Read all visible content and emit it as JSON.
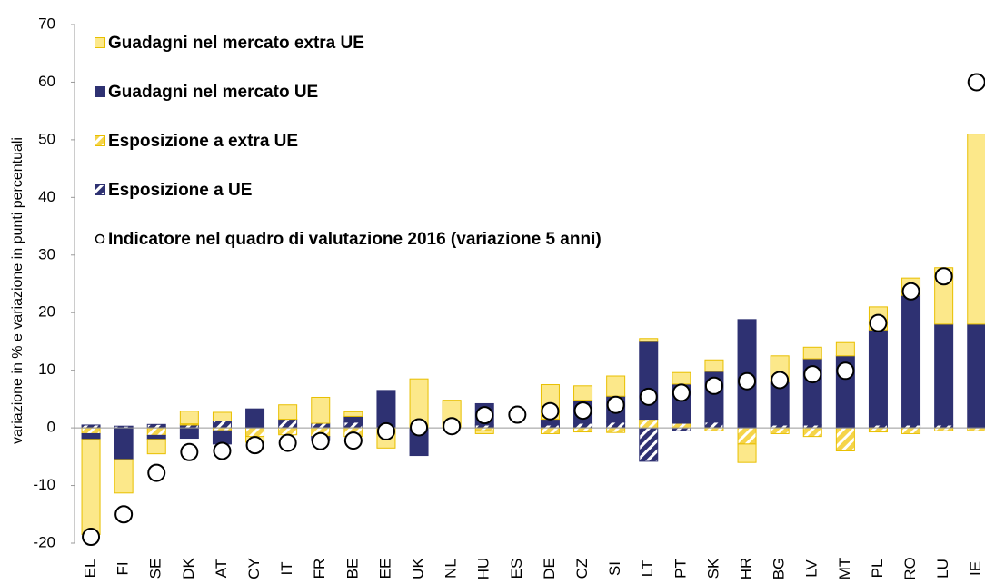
{
  "chart_data": {
    "type": "stacked-bar-scatter",
    "y_label": "variazione in % e variazione in punti percentuali",
    "categories": [
      "EL",
      "FI",
      "SE",
      "DK",
      "AT",
      "CY",
      "IT",
      "FR",
      "BE",
      "EE",
      "UK",
      "NL",
      "HU",
      "ES",
      "DE",
      "CZ",
      "SI",
      "LT",
      "PT",
      "SK",
      "HR",
      "BG",
      "LV",
      "MT",
      "PL",
      "RO",
      "LU",
      "IE"
    ],
    "series": [
      {
        "name": "Esposizione a UE",
        "color": "#2e3172",
        "pattern": "hatch",
        "values": [
          0.5,
          0.3,
          0.6,
          0.5,
          1.2,
          0,
          1.5,
          0.8,
          1,
          0,
          0,
          0,
          0.5,
          0,
          0.5,
          0.8,
          1,
          -5.8,
          -0.5,
          1,
          0,
          0.5,
          0.5,
          0,
          0.5,
          0.5,
          0.5,
          0
        ]
      },
      {
        "name": "Esposizione a extra UE",
        "color": "#f5d44a",
        "pattern": "hatch",
        "values": [
          -1,
          0,
          -1.3,
          0.2,
          -0.5,
          -1.5,
          -1.2,
          -1.5,
          -1.5,
          0,
          0,
          0,
          -0.5,
          0,
          -1,
          -0.7,
          -0.8,
          1.5,
          0.8,
          -0.5,
          -2.8,
          -1,
          -1.5,
          -4,
          -0.7,
          -1,
          -0.5,
          -0.5
        ]
      },
      {
        "name": "Guadagni nel mercato UE",
        "color": "#2e3172",
        "pattern": "solid",
        "values": [
          -1,
          -5.5,
          -0.7,
          -1.8,
          -2.3,
          3.3,
          0,
          -0.7,
          1,
          6.5,
          -4.8,
          0,
          3.7,
          0,
          1,
          4,
          4.5,
          13.5,
          6.8,
          8.8,
          18.8,
          7.5,
          11.5,
          12.5,
          16.5,
          22.5,
          17.5,
          18
        ]
      },
      {
        "name": "Guadagni nel mercato extra UE",
        "color": "#fce88a",
        "pattern": "solid",
        "values": [
          -16.5,
          -5.8,
          -2.5,
          2.2,
          1.5,
          -1,
          2.5,
          4.5,
          0.8,
          -3.5,
          8.5,
          4.8,
          -0.5,
          0,
          6,
          2.5,
          3.5,
          0.5,
          2,
          2,
          -3.2,
          4.5,
          2,
          2.3,
          4,
          3,
          9.8,
          33
        ]
      },
      {
        "name": "Indicatore nel quadro di valutazione 2016 (variazione 5 anni)",
        "type": "scatter",
        "color": "#ffffff",
        "values": [
          -18.9,
          -15,
          -7.8,
          -4.2,
          -4,
          -3,
          -2.6,
          -2.3,
          -2.2,
          -0.6,
          0.1,
          0.3,
          2.2,
          2.3,
          2.9,
          3,
          4,
          5.4,
          6.1,
          7.3,
          8.1,
          8.3,
          9.3,
          9.9,
          18.2,
          23.7,
          26.3,
          60
        ]
      }
    ],
    "legend_order": [
      3,
      2,
      1,
      0,
      4
    ],
    "ylim": [
      -20,
      70
    ],
    "yticks": [
      -20,
      -10,
      0,
      10,
      20,
      30,
      40,
      50,
      60,
      70
    ]
  }
}
